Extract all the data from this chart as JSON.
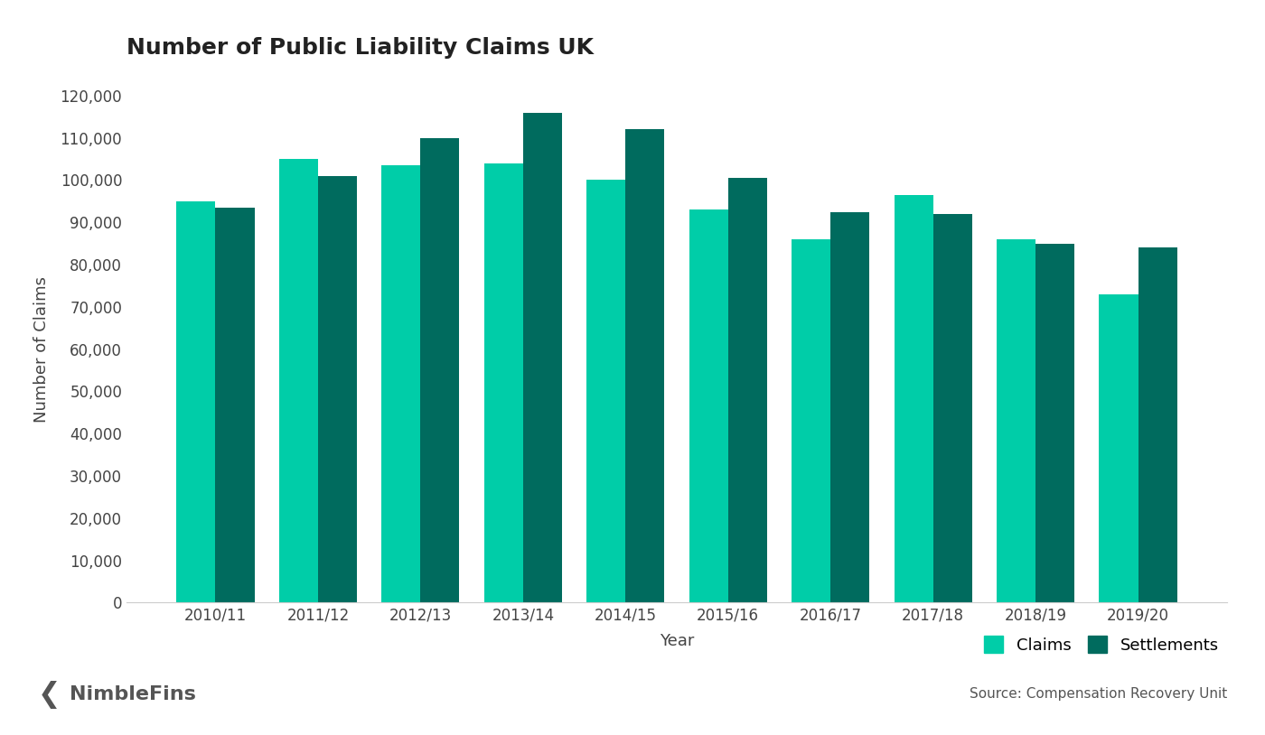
{
  "title": "Number of Public Liability Claims UK",
  "xlabel": "Year",
  "ylabel": "Number of Claims",
  "categories": [
    "2010/11",
    "2011/12",
    "2012/13",
    "2013/14",
    "2014/15",
    "2015/16",
    "2016/17",
    "2017/18",
    "2018/19",
    "2019/20"
  ],
  "claims": [
    95000,
    105000,
    103500,
    104000,
    100000,
    93000,
    86000,
    96500,
    86000,
    73000
  ],
  "settlements": [
    93500,
    101000,
    110000,
    116000,
    112000,
    100500,
    92500,
    92000,
    85000,
    84000
  ],
  "claims_color": "#00CDA8",
  "settlements_color": "#006B5E",
  "bar_width": 0.38,
  "ylim": [
    0,
    120000
  ],
  "ytick_step": 10000,
  "background_color": "#ffffff",
  "legend_labels": [
    "Claims",
    "Settlements"
  ],
  "source_text": "Source: Compensation Recovery Unit",
  "logo_text": "NimbleFins",
  "logo_color": "#555555",
  "title_fontsize": 18,
  "axis_label_fontsize": 13,
  "tick_fontsize": 12,
  "legend_fontsize": 13,
  "source_fontsize": 11
}
